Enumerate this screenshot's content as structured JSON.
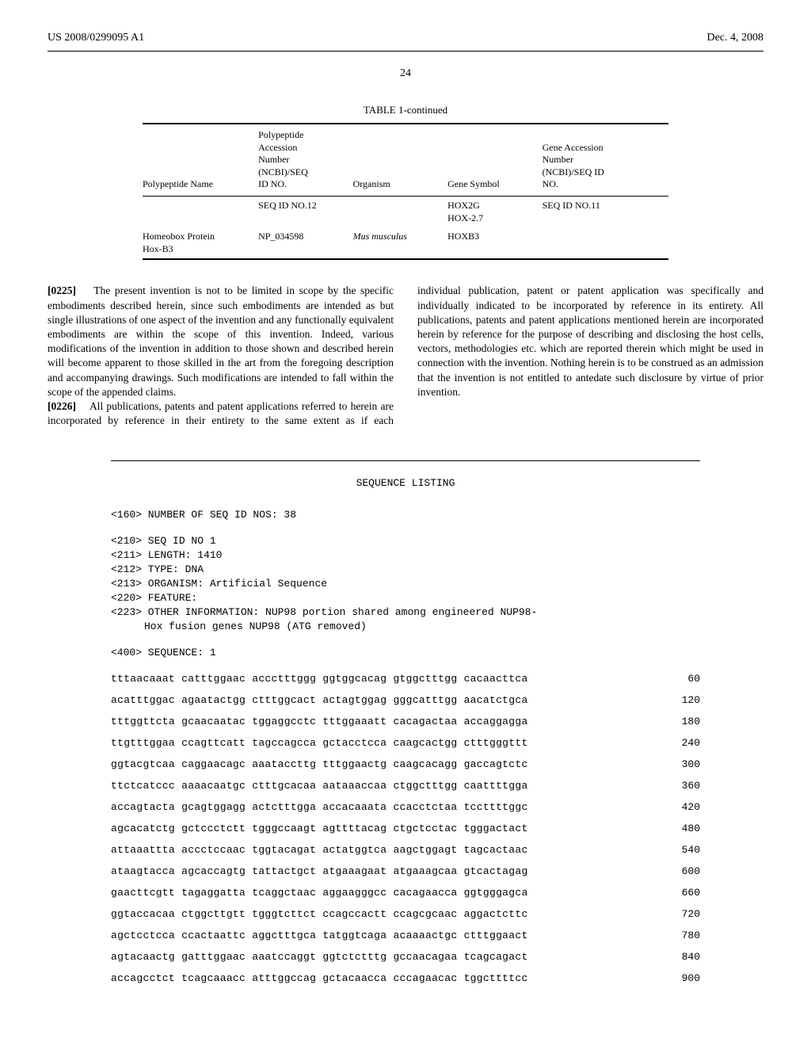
{
  "header": {
    "left": "US 2008/0299095 A1",
    "right": "Dec. 4, 2008"
  },
  "pageNumber": "24",
  "table": {
    "title": "TABLE 1-continued",
    "headers": {
      "col1": "Polypeptide Name",
      "col2": "Polypeptide\nAccession\nNumber\n(NCBI)/SEQ\nID NO.",
      "col3": "Organism",
      "col4": "Gene Symbol",
      "col5": "Gene Accession\nNumber\n(NCBI)/SEQ ID\nNO."
    },
    "rows": [
      {
        "c1": "",
        "c2": "SEQ ID NO.12",
        "c3": "",
        "c4": "HOX2G\nHOX-2.7",
        "c5": "SEQ ID NO.11"
      },
      {
        "c1": "Homeobox Protein\nHox-B3",
        "c2": "NP_034598",
        "c3": "Mus musculus",
        "c4": "HOXB3",
        "c5": ""
      }
    ]
  },
  "paragraphs": {
    "p1num": "[0225]",
    "p1": "The present invention is not to be limited in scope by the specific embodiments described herein, since such embodiments are intended as but single illustrations of one aspect of the invention and any functionally equivalent embodiments are within the scope of this invention. Indeed, various modifications of the invention in addition to those shown and described herein will become apparent to those skilled in the art from the foregoing description and accompanying drawings. Such modifications are intended to fall within the scope of the appended claims.",
    "p2num": "[0226]",
    "p2": "All publications, patents and patent applications referred to herein are incorporated by reference in their entirety to the same extent as if each individual publication, patent or patent application was specifically and individually indicated to be incorporated by reference in its entirety. All publications, patents and patent applications mentioned herein are incorporated herein by reference for the purpose of describing and disclosing the host cells, vectors, methodologies etc. which are reported therein which might be used in connection with the invention. Nothing herein is to be construed as an admission that the invention is not entitled to antedate such disclosure by virtue of prior invention."
  },
  "seqListing": {
    "title": "SEQUENCE LISTING",
    "meta": [
      "<160> NUMBER OF SEQ ID NOS: 38"
    ],
    "meta2": [
      "<210> SEQ ID NO 1",
      "<211> LENGTH: 1410",
      "<212> TYPE: DNA",
      "<213> ORGANISM: Artificial Sequence",
      "<220> FEATURE:",
      "<223> OTHER INFORMATION: NUP98 portion shared among engineered NUP98-"
    ],
    "metaIndent": "Hox fusion genes NUP98 (ATG removed)",
    "meta3": "<400> SEQUENCE: 1",
    "seqs": [
      {
        "s": "tttaacaaat catttggaac accctttggg ggtggcacag gtggctttgg cacaacttca",
        "n": "60"
      },
      {
        "s": "acatttggac agaatactgg ctttggcact actagtggag gggcatttgg aacatctgca",
        "n": "120"
      },
      {
        "s": "tttggttcta gcaacaatac tggaggcctc tttggaaatt cacagactaa accaggagga",
        "n": "180"
      },
      {
        "s": "ttgtttggaa ccagttcatt tagccagcca gctacctcca caagcactgg ctttgggttt",
        "n": "240"
      },
      {
        "s": "ggtacgtcaa caggaacagc aaataccttg tttggaactg caagcacagg gaccagtctc",
        "n": "300"
      },
      {
        "s": "ttctcatccc aaaacaatgc ctttgcacaa aataaaccaa ctggctttgg caattttgga",
        "n": "360"
      },
      {
        "s": "accagtacta gcagtggagg actctttgga accacaaata ccacctctaa tccttttggc",
        "n": "420"
      },
      {
        "s": "agcacatctg gctccctctt tgggccaagt agttttacag ctgctcctac tgggactact",
        "n": "480"
      },
      {
        "s": "attaaattta accctccaac tggtacagat actatggtca aagctggagt tagcactaac",
        "n": "540"
      },
      {
        "s": "ataagtacca agcaccagtg tattactgct atgaaagaat atgaaagcaa gtcactagag",
        "n": "600"
      },
      {
        "s": "gaacttcgtt tagaggatta tcaggctaac aggaagggcc cacagaacca ggtgggagca",
        "n": "660"
      },
      {
        "s": "ggtaccacaa ctggcttgtt tgggtcttct ccagccactt ccagcgcaac aggactcttc",
        "n": "720"
      },
      {
        "s": "agctcctcca ccactaattc aggctttgca tatggtcaga acaaaactgc ctttggaact",
        "n": "780"
      },
      {
        "s": "agtacaactg gatttggaac aaatccaggt ggtctctttg gccaacagaa tcagcagact",
        "n": "840"
      },
      {
        "s": "accagcctct tcagcaaacc atttggccag gctacaacca cccagaacac tggcttttcc",
        "n": "900"
      }
    ]
  }
}
